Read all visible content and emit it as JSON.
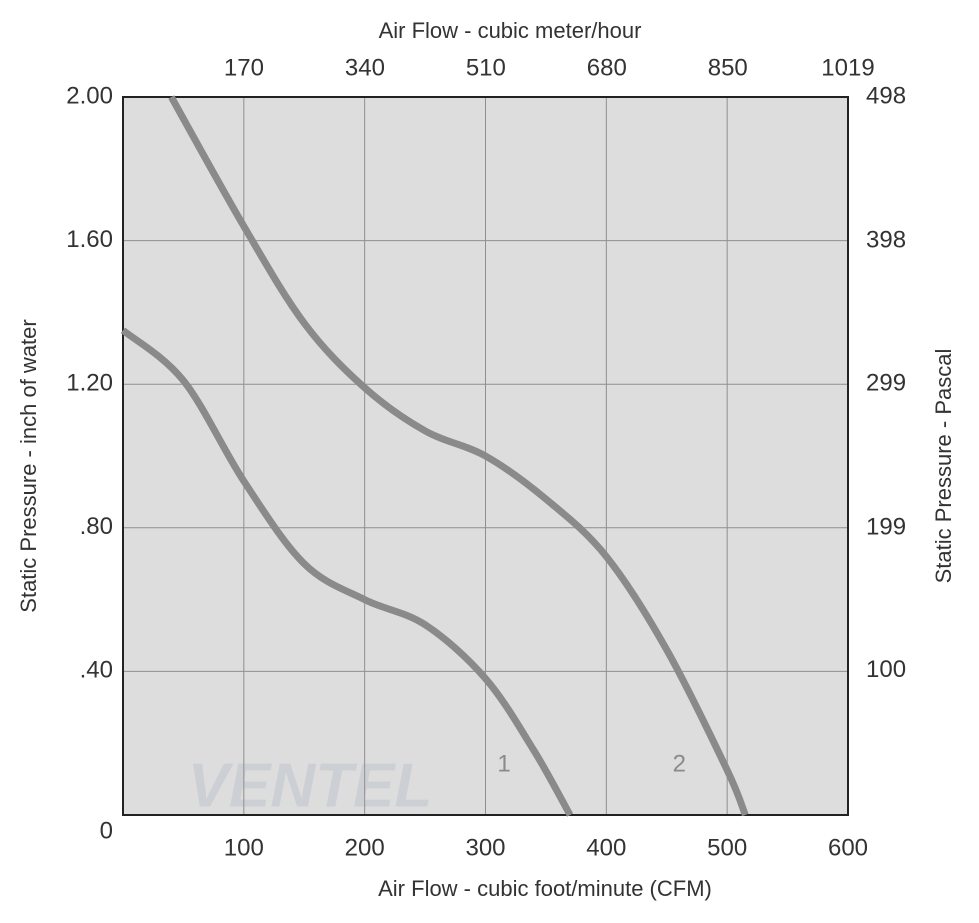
{
  "chart_data": {
    "type": "line",
    "xlabel": "Air Flow - cubic foot/minute (CFM)",
    "x2label": "Air Flow - cubic meter/hour",
    "ylabel": "Static Pressure - inch of water",
    "y2label": "Static Pressure - Pascal",
    "watermark": "VENTEL",
    "xlim": [
      0,
      600
    ],
    "xticks": [
      100,
      200,
      300,
      400,
      500,
      600
    ],
    "x2lim": [
      0,
      1019
    ],
    "x2ticks": [
      170,
      340,
      510,
      680,
      850,
      1019
    ],
    "ylim": [
      0,
      2
    ],
    "yticks": [
      {
        "value": 0,
        "label": "0"
      },
      {
        "value": 0.4,
        "label": ".40"
      },
      {
        "value": 0.8,
        "label": ".80"
      },
      {
        "value": 1.2,
        "label": "1.20"
      },
      {
        "value": 1.6,
        "label": "1.60"
      },
      {
        "value": 2,
        "label": "2.00"
      }
    ],
    "y2lim": [
      0,
      498
    ],
    "y2ticks": [
      100,
      199,
      299,
      398,
      498
    ],
    "grid": true,
    "series": [
      {
        "name": "1",
        "color": "#8a8a8a",
        "x": [
          0,
          50,
          100,
          150,
          200,
          250,
          300,
          340,
          370
        ],
        "values": [
          1.35,
          1.21,
          0.93,
          0.7,
          0.6,
          0.53,
          0.38,
          0.18,
          0
        ]
      },
      {
        "name": "2",
        "color": "#8a8a8a",
        "x": [
          40,
          100,
          150,
          200,
          250,
          300,
          350,
          400,
          450,
          500,
          515
        ],
        "values": [
          2,
          1.64,
          1.37,
          1.19,
          1.07,
          1,
          0.88,
          0.72,
          0.46,
          0.125,
          0
        ]
      }
    ]
  }
}
